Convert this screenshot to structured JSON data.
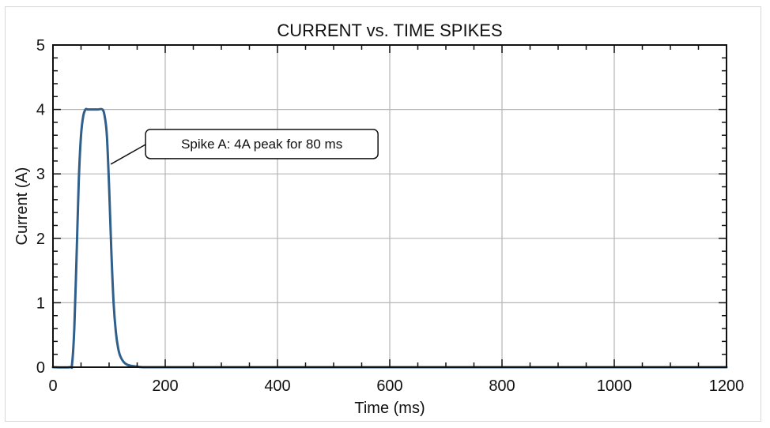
{
  "chart_data": {
    "type": "line",
    "title": "CURRENT vs. TIME SPIKES",
    "xlabel": "Time (ms)",
    "ylabel": "Current (A)",
    "xlim": [
      0,
      1200
    ],
    "ylim": [
      0,
      5
    ],
    "x_ticks": [
      0,
      200,
      400,
      600,
      800,
      1000,
      1200
    ],
    "x_tick_labels": [
      "0",
      "200",
      "400",
      "600",
      "800",
      "1000",
      "1200"
    ],
    "y_ticks": [
      0,
      1,
      2,
      3,
      4,
      5
    ],
    "y_tick_labels": [
      "0",
      "1",
      "2",
      "3",
      "4",
      "5"
    ],
    "x_minor_step": 50,
    "y_minor_step": 0.2,
    "grid": true,
    "legend": null,
    "series": [
      {
        "name": "Current",
        "color": "#2f5f8a",
        "x": [
          0,
          30,
          34,
          38,
          42,
          46,
          50,
          54,
          58,
          62,
          70,
          80,
          88,
          92,
          96,
          100,
          104,
          108,
          112,
          116,
          120,
          126,
          132,
          140,
          150,
          160,
          200,
          400,
          600,
          800,
          1000,
          1200
        ],
        "y": [
          0,
          0,
          0.05,
          0.6,
          1.7,
          2.9,
          3.6,
          3.9,
          4.0,
          4.0,
          4.0,
          4.0,
          4.0,
          3.9,
          3.6,
          2.8,
          1.8,
          1.0,
          0.55,
          0.3,
          0.17,
          0.08,
          0.04,
          0.02,
          0.01,
          0,
          0,
          0,
          0,
          0,
          0,
          0
        ]
      }
    ],
    "annotations": [
      {
        "text": "Spike A: 4A peak for 80 ms",
        "point": [
          103,
          3.15
        ],
        "box_anchor": [
          165,
          3.47
        ]
      }
    ]
  }
}
